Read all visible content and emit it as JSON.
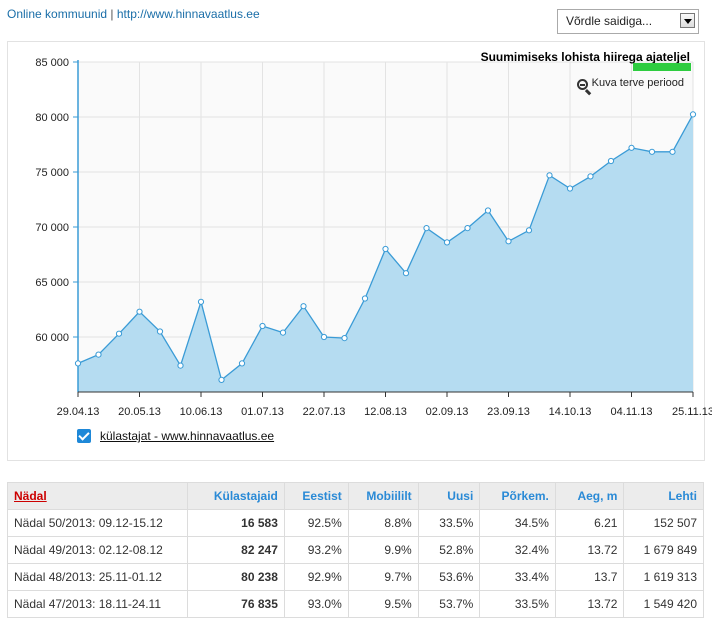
{
  "header": {
    "community_link": "Online kommuunid",
    "separator": "|",
    "site_link": "http://www.hinnavaatlus.ee",
    "compare_select": "Võrdle saidiga..."
  },
  "chart_toolbar": {
    "zoom_hint": "Suumimiseks lohista hiirega ajateljel",
    "full_period": "Kuva terve periood"
  },
  "chart_data": {
    "type": "area",
    "title": "",
    "xlabel": "",
    "ylabel": "",
    "ylim": [
      55000,
      85000
    ],
    "y_ticks": [
      "60 000",
      "65 000",
      "70 000",
      "75 000",
      "80 000",
      "85 000"
    ],
    "y_tick_values": [
      60000,
      65000,
      70000,
      75000,
      80000,
      85000
    ],
    "x_ticks": [
      "29.04.13",
      "20.05.13",
      "10.06.13",
      "01.07.13",
      "22.07.13",
      "12.08.13",
      "02.09.13",
      "23.09.13",
      "14.10.13",
      "04.11.13",
      "25.11.13"
    ],
    "grid": true,
    "legend": "bottom-left",
    "color": "#3a9bd6",
    "fill": "#b5dcf1",
    "series": [
      {
        "name": "külastajat - www.hinnavaatlus.ee",
        "x": [
          "29.04.13",
          "06.05.13",
          "13.05.13",
          "20.05.13",
          "27.05.13",
          "03.06.13",
          "10.06.13",
          "17.06.13",
          "24.06.13",
          "01.07.13",
          "08.07.13",
          "15.07.13",
          "22.07.13",
          "29.07.13",
          "05.08.13",
          "12.08.13",
          "19.08.13",
          "26.08.13",
          "02.09.13",
          "09.09.13",
          "16.09.13",
          "23.09.13",
          "30.09.13",
          "07.10.13",
          "14.10.13",
          "21.10.13",
          "28.10.13",
          "04.11.13",
          "11.11.13",
          "18.11.13",
          "25.11.13"
        ],
        "values": [
          57600,
          58400,
          60300,
          62300,
          60500,
          57400,
          63200,
          56100,
          57600,
          61000,
          60400,
          62800,
          60000,
          59900,
          63500,
          68000,
          65800,
          69900,
          68600,
          69900,
          71500,
          68700,
          69700,
          74700,
          73500,
          74600,
          76000,
          77200,
          76835,
          76835,
          80238
        ]
      }
    ]
  },
  "legend": {
    "label": "külastajat - www.hinnavaatlus.ee",
    "checked": true
  },
  "table": {
    "headers": [
      "Nädal",
      "Külastajaid",
      "Eestist",
      "Mobiililt",
      "Uusi",
      "Põrkem.",
      "Aeg, m",
      "Lehti"
    ],
    "rows": [
      [
        "Nädal 50/2013: 09.12-15.12",
        "16 583",
        "92.5%",
        "8.8%",
        "33.5%",
        "34.5%",
        "6.21",
        "152 507"
      ],
      [
        "Nädal 49/2013: 02.12-08.12",
        "82 247",
        "93.2%",
        "9.9%",
        "52.8%",
        "32.4%",
        "13.72",
        "1 679 849"
      ],
      [
        "Nädal 48/2013: 25.11-01.12",
        "80 238",
        "92.9%",
        "9.7%",
        "53.6%",
        "33.4%",
        "13.7",
        "1 619 313"
      ],
      [
        "Nädal 47/2013: 18.11-24.11",
        "76 835",
        "93.0%",
        "9.5%",
        "53.7%",
        "33.5%",
        "13.72",
        "1 549 420"
      ]
    ]
  }
}
